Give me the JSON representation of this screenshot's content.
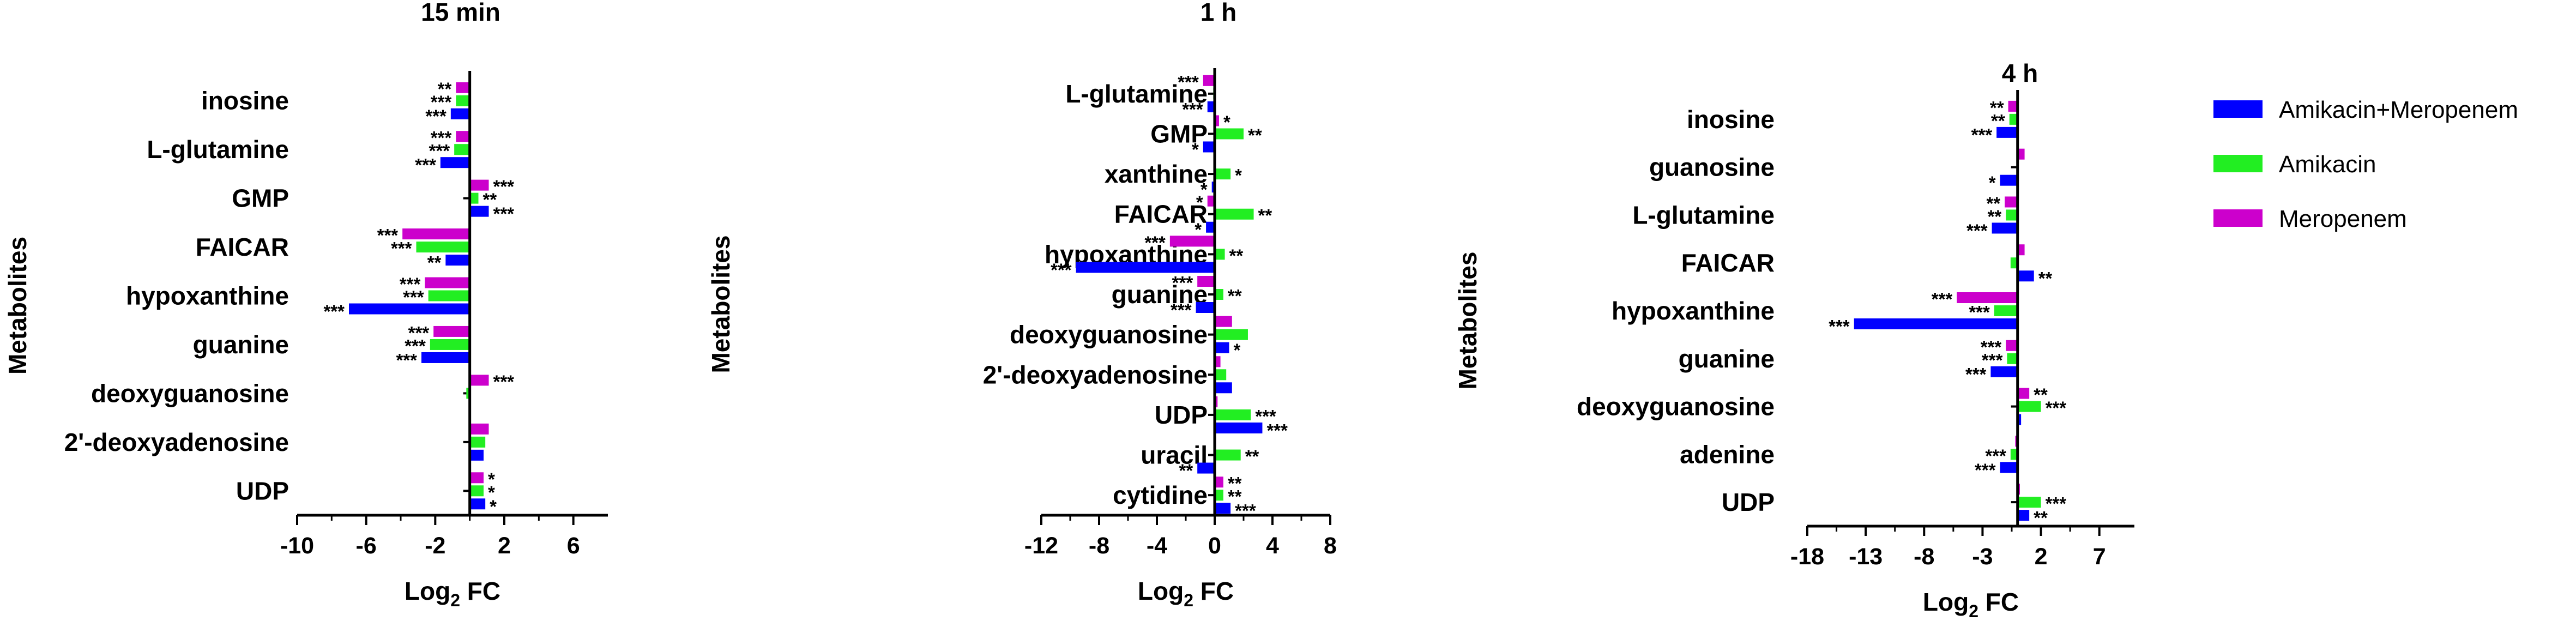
{
  "chart_data": [
    {
      "type": "bar",
      "orientation": "horizontal",
      "title": "15 min",
      "xlabel": "Log2 FC",
      "ylabel": "Metabolites",
      "xlim": [
        -10,
        8
      ],
      "xticks": [
        "-10",
        "-6",
        "-2",
        "2",
        "6"
      ],
      "xtick_values": [
        -10,
        -6,
        -2,
        2,
        6
      ],
      "categories": [
        "inosine",
        "L-glutamine",
        "GMP",
        "FAICAR",
        "hypoxanthine",
        "guanine",
        "deoxyguanosine",
        "2'-deoxyadenosine",
        "UDP"
      ],
      "series": [
        {
          "name": "Meropenem",
          "values": [
            -0.8,
            -0.8,
            1.1,
            -3.9,
            -2.6,
            -2.1,
            1.1,
            1.1,
            0.8
          ],
          "sig": [
            "**",
            "***",
            "***",
            "***",
            "***",
            "***",
            "***",
            "",
            "*"
          ]
        },
        {
          "name": "Amikacin",
          "values": [
            -0.8,
            -0.9,
            0.5,
            -3.1,
            -2.4,
            -2.3,
            -0.2,
            0.9,
            0.8
          ],
          "sig": [
            "***",
            "***",
            "**",
            "***",
            "***",
            "***",
            "",
            "",
            "*"
          ]
        },
        {
          "name": "Amikacin+Meropenem",
          "values": [
            -1.1,
            -1.7,
            1.1,
            -1.4,
            -7.0,
            -2.8,
            0.0,
            0.8,
            0.9
          ],
          "sig": [
            "***",
            "***",
            "***",
            "**",
            "***",
            "***",
            "",
            "",
            "*"
          ]
        }
      ]
    },
    {
      "type": "bar",
      "orientation": "horizontal",
      "title": "1 h",
      "xlabel": "Log2 FC",
      "ylabel": "Metabolites",
      "xlim": [
        -12,
        8
      ],
      "xticks": [
        "-12",
        "-8",
        "-4",
        "0",
        "4",
        "8"
      ],
      "xtick_values": [
        -12,
        -8,
        -4,
        0,
        4,
        8
      ],
      "categories": [
        "L-glutamine",
        "GMP",
        "xanthine",
        "FAICAR",
        "hypoxanthine",
        "guanine",
        "deoxyguanosine",
        "2'-deoxyadenosine",
        "UDP",
        "uracil",
        "cytidine"
      ],
      "series": [
        {
          "name": "Meropenem",
          "values": [
            -0.8,
            0.3,
            0.0,
            -0.5,
            -3.1,
            -1.2,
            1.2,
            0.4,
            0.2,
            0.1,
            0.6
          ],
          "sig": [
            "***",
            "*",
            "",
            "*",
            "***",
            "***",
            "",
            "",
            "",
            "",
            "**"
          ]
        },
        {
          "name": "Amikacin",
          "values": [
            -0.1,
            2.0,
            1.1,
            2.7,
            0.7,
            0.6,
            2.3,
            0.8,
            2.5,
            1.8,
            0.6
          ],
          "sig": [
            "",
            "**",
            "*",
            "**",
            "**",
            "**",
            "",
            "",
            "***",
            "**",
            "**"
          ]
        },
        {
          "name": "Amikacin+Meropenem",
          "values": [
            -0.5,
            -0.8,
            -0.2,
            -0.6,
            -9.6,
            -1.3,
            1.0,
            1.2,
            3.3,
            -1.2,
            1.1
          ],
          "sig": [
            "***",
            "*",
            "*",
            "*",
            "***",
            "***",
            "*",
            "",
            "***",
            "**",
            "***"
          ]
        }
      ]
    },
    {
      "type": "bar",
      "orientation": "horizontal",
      "title": "4 h",
      "xlabel": "Log2 FC",
      "ylabel": "Metabolites",
      "xlim": [
        -18,
        10
      ],
      "xticks": [
        "-18",
        "-13",
        "-8",
        "-3",
        "2",
        "7"
      ],
      "xtick_values": [
        -18,
        -13,
        -8,
        -3,
        2,
        7
      ],
      "categories": [
        "inosine",
        "guanosine",
        "L-glutamine",
        "FAICAR",
        "hypoxanthine",
        "guanine",
        "deoxyguanosine",
        "adenine",
        "UDP"
      ],
      "series": [
        {
          "name": "Meropenem",
          "values": [
            -0.8,
            0.6,
            -1.1,
            0.6,
            -5.2,
            -1.0,
            1.0,
            -0.2,
            0.2
          ],
          "sig": [
            "**",
            "",
            "**",
            "",
            "***",
            "***",
            "**",
            "",
            ""
          ]
        },
        {
          "name": "Amikacin",
          "values": [
            -0.7,
            0.0,
            -1.0,
            -0.6,
            -2.0,
            -0.9,
            2.0,
            -0.6,
            2.0
          ],
          "sig": [
            "**",
            "",
            "**",
            "",
            "***",
            "***",
            "***",
            "***",
            "***"
          ]
        },
        {
          "name": "Amikacin+Meropenem",
          "values": [
            -1.8,
            -1.5,
            -2.2,
            1.4,
            -14.0,
            -2.3,
            0.3,
            -1.5,
            1.0
          ],
          "sig": [
            "***",
            "*",
            "***",
            "**",
            "***",
            "***",
            "",
            "***",
            "**"
          ]
        }
      ]
    }
  ],
  "legend": {
    "placement": "right",
    "entries": [
      {
        "label": "Amikacin+Meropenem",
        "color": "#0000ff"
      },
      {
        "label": "Amikacin",
        "color": "#22ee22"
      },
      {
        "label": "Meropenem",
        "color": "#cc00cc"
      }
    ]
  },
  "colors": {
    "Amikacin+Meropenem": "#0000ff",
    "Amikacin": "#22ee22",
    "Meropenem": "#cc00cc"
  }
}
